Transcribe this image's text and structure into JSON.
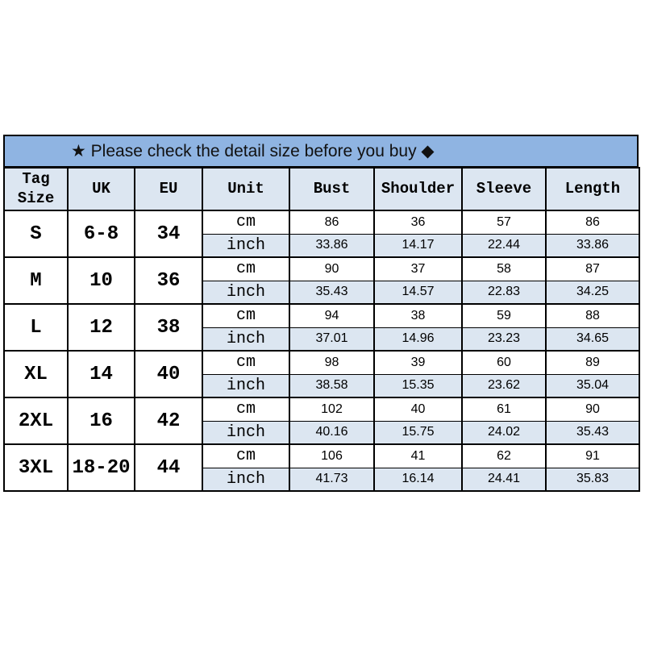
{
  "banner": {
    "text": "★ Please check the detail size before you buy ◆"
  },
  "table": {
    "columns": [
      "Tag Size",
      "UK",
      "EU",
      "Unit",
      "Bust",
      "Shoulder",
      "Sleeve",
      "Length"
    ],
    "unit_labels": [
      "cm",
      "inch"
    ],
    "rows": [
      {
        "size": "S",
        "uk": "6-8",
        "eu": "34",
        "cm": [
          "86",
          "36",
          "57",
          "86"
        ],
        "inch": [
          "33.86",
          "14.17",
          "22.44",
          "33.86"
        ]
      },
      {
        "size": "M",
        "uk": "10",
        "eu": "36",
        "cm": [
          "90",
          "37",
          "58",
          "87"
        ],
        "inch": [
          "35.43",
          "14.57",
          "22.83",
          "34.25"
        ]
      },
      {
        "size": "L",
        "uk": "12",
        "eu": "38",
        "cm": [
          "94",
          "38",
          "59",
          "88"
        ],
        "inch": [
          "37.01",
          "14.96",
          "23.23",
          "34.65"
        ]
      },
      {
        "size": "XL",
        "uk": "14",
        "eu": "40",
        "cm": [
          "98",
          "39",
          "60",
          "89"
        ],
        "inch": [
          "38.58",
          "15.35",
          "23.62",
          "35.04"
        ]
      },
      {
        "size": "2XL",
        "uk": "16",
        "eu": "42",
        "cm": [
          "102",
          "40",
          "61",
          "90"
        ],
        "inch": [
          "40.16",
          "15.75",
          "24.02",
          "35.43"
        ]
      },
      {
        "size": "3XL",
        "uk": "18-20",
        "eu": "44",
        "cm": [
          "106",
          "41",
          "62",
          "91"
        ],
        "inch": [
          "41.73",
          "16.14",
          "24.41",
          "35.83"
        ]
      }
    ],
    "colors": {
      "banner_bg": "#8fb4e2",
      "header_bg": "#dce6f1",
      "inch_row_bg": "#dce6f1",
      "border": "#000000",
      "text": "#000000"
    }
  }
}
